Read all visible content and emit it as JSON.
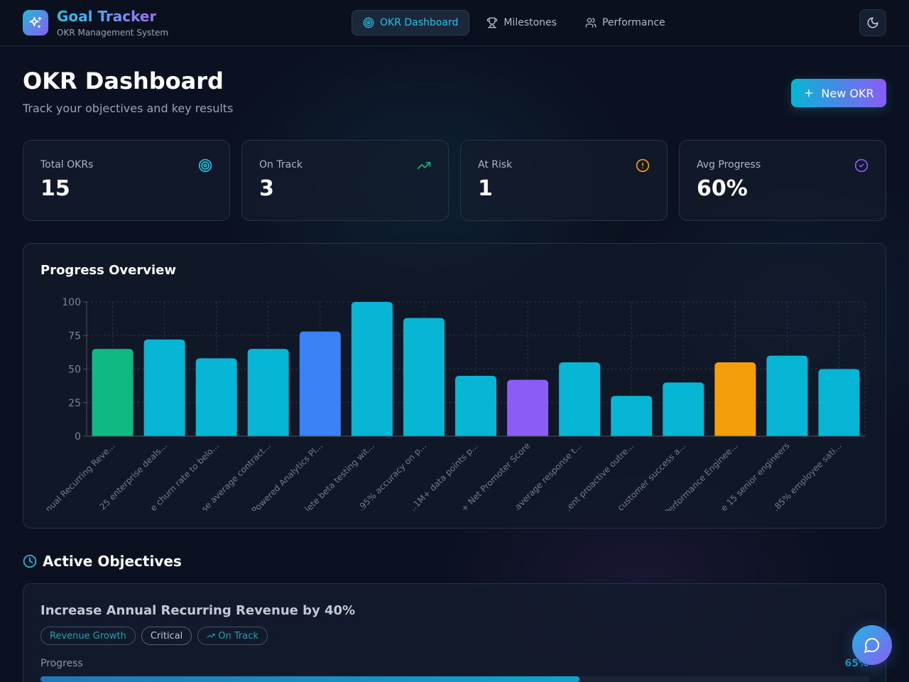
{
  "app": {
    "title": "Goal Tracker",
    "subtitle": "OKR Management System"
  },
  "nav": [
    {
      "label": "OKR Dashboard",
      "icon": "target-icon",
      "active": true
    },
    {
      "label": "Milestones",
      "icon": "trophy-icon",
      "active": false
    },
    {
      "label": "Performance",
      "icon": "users-icon",
      "active": false
    }
  ],
  "theme_toggle_icon": "moon-icon",
  "page": {
    "title": "OKR Dashboard",
    "subtitle": "Track your objectives and key results",
    "new_button_label": "New OKR"
  },
  "stats": [
    {
      "label": "Total OKRs",
      "value": "15",
      "icon": "target-icon",
      "color": "#22c3e6"
    },
    {
      "label": "On Track",
      "value": "3",
      "icon": "trending-up-icon",
      "color": "#10b981"
    },
    {
      "label": "At Risk",
      "value": "1",
      "icon": "alert-circle-icon",
      "color": "#f59e0b"
    },
    {
      "label": "Avg Progress",
      "value": "60%",
      "icon": "check-circle-icon",
      "color": "#8b5cf6"
    }
  ],
  "chart_title": "Progress Overview",
  "chart_data": {
    "type": "bar",
    "categories": [
      "...nual Recurring Reve...",
      "...25 enterprise deals...",
      "...e churn rate to belo...",
      "...se average contract...",
      "...Powered Analytics Pl...",
      "...lete beta testing wit...",
      "...95% accuracy on p...",
      "...1M+ data points p...",
      "...+ Net Promoter Score",
      "...average response t...",
      "...ent proactive outre...",
      "...customer success a...",
      "...Performance Enginee...",
      "...e 15 senior engineers",
      "...85% employee sati..."
    ],
    "values": [
      65,
      72,
      58,
      65,
      78,
      100,
      88,
      45,
      42,
      55,
      30,
      40,
      55,
      60,
      50
    ],
    "bar_colors": [
      "#10b981",
      "#06b6d4",
      "#06b6d4",
      "#06b6d4",
      "#3b82f6",
      "#06b6d4",
      "#06b6d4",
      "#06b6d4",
      "#8b5cf6",
      "#06b6d4",
      "#06b6d4",
      "#06b6d4",
      "#f59e0b",
      "#06b6d4",
      "#06b6d4"
    ],
    "yticks": [
      0,
      25,
      50,
      75,
      100
    ],
    "ylim": [
      0,
      100
    ],
    "grid": true,
    "xlabel": "",
    "ylabel": ""
  },
  "section": {
    "title": "Active Objectives",
    "icon": "clock-icon"
  },
  "objective": {
    "title": "Increase Annual Recurring Revenue by 40%",
    "tags": [
      {
        "label": "Revenue Growth",
        "style": "teal"
      },
      {
        "label": "Critical",
        "style": "gray"
      },
      {
        "label": "On Track",
        "style": "teal",
        "icon": "trending-up-icon"
      }
    ],
    "progress_label": "Progress",
    "progress_value": "65%",
    "progress": 0.65
  },
  "chat_icon": "message-circle-icon"
}
